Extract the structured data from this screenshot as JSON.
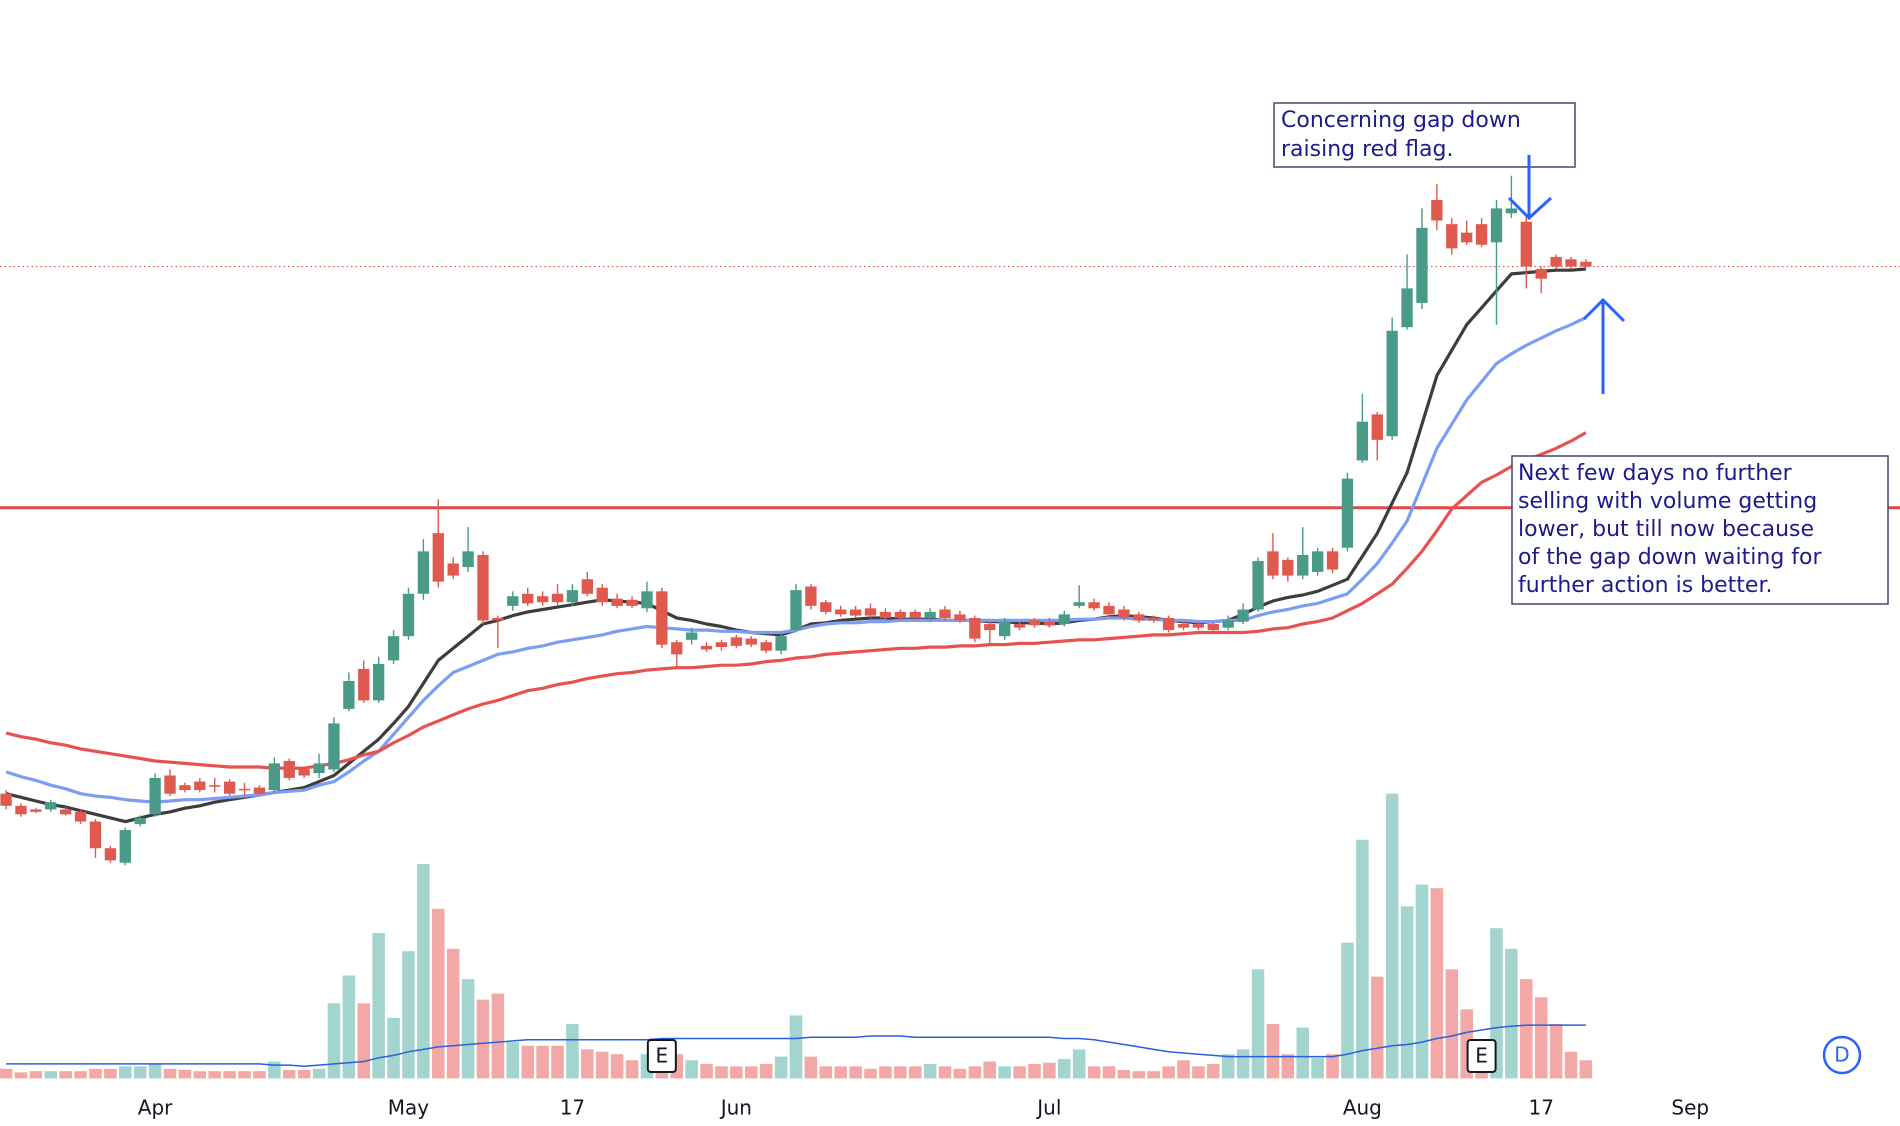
{
  "chart_data": {
    "type": "candlestick",
    "categories": [
      null,
      null,
      null,
      null,
      null,
      null,
      null,
      null,
      null,
      null,
      "Apr",
      null,
      null,
      null,
      null,
      null,
      null,
      null,
      null,
      null,
      null,
      null,
      null,
      null,
      null,
      null,
      null,
      "May",
      null,
      null,
      null,
      null,
      null,
      null,
      null,
      null,
      null,
      null,
      "17",
      null,
      null,
      null,
      null,
      null,
      null,
      null,
      null,
      null,
      null,
      "Jun",
      null,
      null,
      null,
      null,
      null,
      null,
      null,
      null,
      null,
      null,
      null,
      null,
      null,
      null,
      null,
      null,
      null,
      null,
      null,
      null,
      "Jul",
      null,
      null,
      null,
      null,
      null,
      null,
      null,
      null,
      null,
      null,
      null,
      null,
      null,
      null,
      null,
      null,
      null,
      null,
      null,
      null,
      "Aug",
      null,
      null,
      null,
      null,
      null,
      null,
      null,
      null,
      null,
      null,
      null,
      "17",
      null,
      null,
      null,
      null,
      null,
      null,
      null,
      null,
      null,
      "Sep"
    ],
    "open": [
      145,
      135,
      132,
      132,
      132,
      130,
      122,
      100,
      88,
      120,
      128,
      160,
      152,
      155,
      152,
      155,
      149,
      150,
      148,
      172,
      165,
      162,
      165,
      215,
      248,
      222,
      255,
      275,
      310,
      360,
      335,
      332,
      342,
      290,
      300,
      310,
      308,
      310,
      303,
      322,
      315,
      306,
      305,
      298,
      312,
      270,
      272,
      267,
      270,
      274,
      273,
      270,
      263,
      280,
      316,
      303,
      297,
      297,
      298,
      295,
      295,
      295,
      290,
      297,
      293,
      290,
      285,
      275,
      285,
      288,
      287,
      285,
      300,
      303,
      300,
      297,
      293,
      290,
      290,
      285,
      285,
      285,
      282,
      287,
      297,
      345,
      338,
      325,
      328,
      345,
      348,
      420,
      458,
      440,
      530,
      550,
      635,
      615,
      608,
      615,
      600,
      624,
      617,
      578,
      588,
      586,
      584,
      null,
      null,
      null,
      null,
      null,
      null,
      null
    ],
    "high": [
      148,
      137,
      133,
      140,
      134,
      132,
      124,
      102,
      117,
      127,
      162,
      165,
      154,
      158,
      158,
      157,
      154,
      152,
      175,
      174,
      167,
      178,
      208,
      245,
      255,
      258,
      280,
      315,
      355,
      388,
      340,
      365,
      345,
      292,
      312,
      315,
      312,
      318,
      318,
      328,
      318,
      310,
      308,
      320,
      315,
      272,
      282,
      270,
      272,
      276,
      275,
      272,
      278,
      318,
      318,
      305,
      300,
      300,
      302,
      298,
      297,
      297,
      298,
      300,
      296,
      292,
      287,
      290,
      287,
      290,
      290,
      296,
      317,
      306,
      303,
      300,
      295,
      292,
      292,
      287,
      287,
      287,
      292,
      302,
      340,
      360,
      340,
      365,
      348,
      348,
      410,
      475,
      460,
      538,
      590,
      628,
      648,
      620,
      618,
      620,
      635,
      655,
      622,
      580,
      590,
      588,
      586,
      null,
      null,
      null,
      null,
      null,
      null,
      null
    ],
    "low": [
      132,
      126,
      129,
      130,
      127,
      120,
      92,
      88,
      86,
      118,
      126,
      143,
      146,
      146,
      146,
      143,
      143,
      143,
      146,
      156,
      158,
      158,
      163,
      213,
      220,
      220,
      252,
      272,
      305,
      315,
      322,
      328,
      285,
      265,
      296,
      300,
      300,
      300,
      300,
      308,
      300,
      298,
      298,
      295,
      265,
      248,
      268,
      262,
      263,
      265,
      266,
      261,
      260,
      278,
      297,
      293,
      291,
      290,
      290,
      288,
      288,
      288,
      287,
      288,
      286,
      270,
      268,
      272,
      280,
      282,
      282,
      283,
      298,
      296,
      291,
      288,
      286,
      286,
      278,
      280,
      280,
      278,
      280,
      285,
      295,
      322,
      320,
      322,
      325,
      327,
      345,
      418,
      420,
      437,
      528,
      545,
      610,
      590,
      598,
      596,
      532,
      620,
      562,
      558,
      578,
      578,
      579,
      null,
      null,
      null,
      null,
      null,
      null,
      null
    ],
    "close": [
      135,
      128,
      130,
      138,
      128,
      122,
      100,
      90,
      115,
      125,
      158,
      145,
      148,
      148,
      151,
      145,
      148,
      145,
      170,
      158,
      160,
      170,
      203,
      238,
      222,
      252,
      275,
      310,
      345,
      320,
      325,
      345,
      288,
      288,
      308,
      302,
      303,
      303,
      313,
      310,
      303,
      300,
      300,
      312,
      268,
      260,
      278,
      264,
      266,
      267,
      268,
      263,
      275,
      313,
      300,
      295,
      293,
      292,
      292,
      290,
      290,
      290,
      295,
      290,
      288,
      273,
      280,
      287,
      282,
      284,
      284,
      293,
      303,
      298,
      293,
      290,
      288,
      288,
      280,
      282,
      282,
      280,
      288,
      297,
      337,
      325,
      325,
      342,
      345,
      330,
      405,
      452,
      437,
      527,
      562,
      612,
      618,
      595,
      600,
      598,
      628,
      628,
      580,
      570,
      580,
      580,
      580,
      null,
      null,
      null,
      null,
      null,
      null,
      null
    ],
    "volume": [
      8,
      5,
      6,
      6,
      6,
      6,
      8,
      8,
      10,
      10,
      12,
      8,
      7,
      6,
      6,
      6,
      6,
      6,
      14,
      7,
      7,
      8,
      62,
      85,
      62,
      120,
      50,
      105,
      177,
      140,
      107,
      82,
      65,
      70,
      30,
      27,
      27,
      27,
      45,
      24,
      22,
      20,
      15,
      20,
      28,
      20,
      15,
      12,
      10,
      10,
      10,
      12,
      18,
      52,
      18,
      10,
      10,
      10,
      8,
      10,
      10,
      10,
      12,
      10,
      8,
      10,
      14,
      10,
      10,
      12,
      13,
      16,
      24,
      10,
      10,
      7,
      6,
      6,
      10,
      15,
      10,
      12,
      20,
      24,
      90,
      45,
      20,
      42,
      17,
      20,
      112,
      197,
      84,
      235,
      142,
      160,
      157,
      90,
      57,
      32,
      124,
      107,
      82,
      67,
      45,
      22,
      15,
      null,
      null,
      null,
      null,
      null,
      null,
      null
    ],
    "up_color": "#4a9a88",
    "down_color": "#e0594f",
    "volume_up_color": "#a3d4ce",
    "volume_down_color": "#f2a8a6",
    "moving_averages": [
      {
        "color": "#3d3d3d",
        "values": [
          145,
          142,
          139,
          136,
          134,
          131,
          128,
          125,
          122,
          125,
          128,
          130,
          133,
          135,
          138,
          140,
          142,
          144,
          146,
          148,
          150,
          155,
          160,
          170,
          180,
          190,
          203,
          217,
          236,
          255,
          265,
          275,
          285,
          288,
          292,
          295,
          297,
          299,
          301,
          303,
          305,
          304,
          303,
          302,
          296,
          290,
          288,
          285,
          283,
          280,
          278,
          277,
          276,
          280,
          285,
          286,
          288,
          289,
          290,
          290,
          289,
          289,
          289,
          288,
          288,
          288,
          287,
          287,
          286,
          286,
          285,
          286,
          288,
          289,
          291,
          292,
          291,
          290,
          288,
          287,
          286,
          287,
          288,
          293,
          299,
          304,
          307,
          309,
          312,
          317,
          322,
          341,
          360,
          385,
          410,
          450,
          490,
          511,
          532,
          546,
          560,
          574,
          575,
          576,
          577,
          577,
          578,
          null,
          null,
          null,
          null,
          null,
          null,
          null
        ]
      },
      {
        "color": "#7c9df2",
        "values": [
          163,
          159,
          156,
          152,
          149,
          145,
          143,
          142,
          140,
          139,
          138,
          139,
          140,
          140,
          141,
          142,
          143,
          144,
          146,
          147,
          148,
          152,
          155,
          163,
          172,
          180,
          194,
          208,
          222,
          234,
          245,
          250,
          255,
          260,
          262,
          265,
          267,
          270,
          272,
          274,
          276,
          279,
          281,
          283,
          282,
          281,
          280,
          280,
          279,
          279,
          278,
          278,
          278,
          280,
          283,
          285,
          286,
          286,
          287,
          287,
          288,
          288,
          288,
          288,
          288,
          288,
          288,
          288,
          288,
          288,
          288,
          288,
          289,
          289,
          290,
          290,
          289,
          289,
          288,
          288,
          287,
          287,
          288,
          288,
          292,
          295,
          297,
          300,
          302,
          306,
          310,
          322,
          335,
          352,
          370,
          400,
          430,
          450,
          470,
          485,
          500,
          508,
          515,
          521,
          527,
          532,
          538,
          null,
          null,
          null,
          null,
          null,
          null,
          null
        ]
      },
      {
        "color": "#e8524e",
        "values": [
          195,
          192,
          190,
          187,
          185,
          182,
          180,
          178,
          176,
          174,
          172,
          171,
          170,
          169,
          168,
          167,
          167,
          167,
          166,
          166,
          166,
          168,
          170,
          173,
          177,
          180,
          187,
          193,
          200,
          205,
          210,
          215,
          219,
          222,
          226,
          230,
          232,
          235,
          237,
          240,
          242,
          244,
          245,
          247,
          248,
          249,
          249,
          250,
          251,
          251,
          252,
          254,
          255,
          257,
          258,
          260,
          261,
          262,
          263,
          264,
          265,
          265,
          266,
          266,
          267,
          267,
          268,
          268,
          269,
          269,
          270,
          271,
          272,
          272,
          273,
          274,
          275,
          276,
          276,
          277,
          278,
          278,
          278,
          278,
          279,
          281,
          282,
          285,
          287,
          290,
          296,
          302,
          310,
          318,
          331,
          345,
          362,
          380,
          391,
          402,
          408,
          415,
          420,
          425,
          430,
          436,
          443,
          null,
          null,
          null,
          null,
          null,
          null,
          null
        ]
      }
    ],
    "volume_ma": {
      "color": "#2b5fe0",
      "values": [
        12,
        12,
        12,
        12,
        12,
        12,
        12,
        12,
        12,
        12,
        12,
        12,
        12,
        12,
        12,
        12,
        12,
        12,
        11,
        11,
        10,
        11,
        12,
        13,
        14,
        17,
        19,
        22,
        24,
        26,
        27,
        28,
        29,
        30,
        31,
        32,
        32,
        32,
        32,
        32,
        32,
        32,
        32,
        32,
        33,
        33,
        33,
        33,
        33,
        33,
        33,
        33,
        33,
        33,
        34,
        34,
        34,
        34,
        35,
        35,
        35,
        34,
        34,
        34,
        34,
        34,
        34,
        34,
        34,
        34,
        34,
        33,
        33,
        32,
        30,
        28,
        26,
        24,
        22,
        21,
        20,
        19,
        18,
        18,
        18,
        18,
        18,
        18,
        18,
        18,
        20,
        23,
        25,
        27,
        28,
        30,
        33,
        35,
        38,
        40,
        42,
        43,
        44,
        44,
        44,
        44,
        44,
        null,
        null,
        null,
        null,
        null,
        null,
        null
      ]
    },
    "events": [
      null,
      null,
      null,
      null,
      null,
      null,
      null,
      null,
      null,
      null,
      null,
      null,
      null,
      null,
      null,
      null,
      null,
      null,
      null,
      null,
      null,
      null,
      null,
      null,
      null,
      null,
      null,
      null,
      null,
      null,
      null,
      null,
      null,
      null,
      null,
      null,
      null,
      null,
      null,
      null,
      null,
      null,
      null,
      null,
      "E",
      null,
      null,
      null,
      null,
      null,
      null,
      null,
      null,
      null,
      null,
      null,
      null,
      null,
      null,
      null,
      null,
      null,
      null,
      null,
      null,
      null,
      null,
      null,
      null,
      null,
      null,
      null,
      null,
      null,
      null,
      null,
      null,
      null,
      null,
      null,
      null,
      null,
      null,
      null,
      null,
      null,
      null,
      null,
      null,
      null,
      null,
      null,
      null,
      null,
      null,
      null,
      null,
      null,
      null,
      "E",
      null,
      null,
      null,
      null,
      null,
      null,
      null,
      null,
      null,
      null,
      null,
      null,
      null,
      null
    ],
    "ylim": [
      80,
      700
    ],
    "volume_ylim": [
      0,
      300
    ],
    "horizontal_line": {
      "value": 381,
      "color": "#e0484a"
    },
    "price_line": {
      "value": 580,
      "color": "#e0594f"
    },
    "interval": "D",
    "annotations": [
      {
        "lines": [
          "Concerning gap down",
          "raising red flag."
        ]
      },
      {
        "lines": [
          "Next few days no further",
          "selling with volume getting",
          "lower, but till now because",
          "of the gap down waiting for",
          "further action is better."
        ]
      }
    ]
  }
}
